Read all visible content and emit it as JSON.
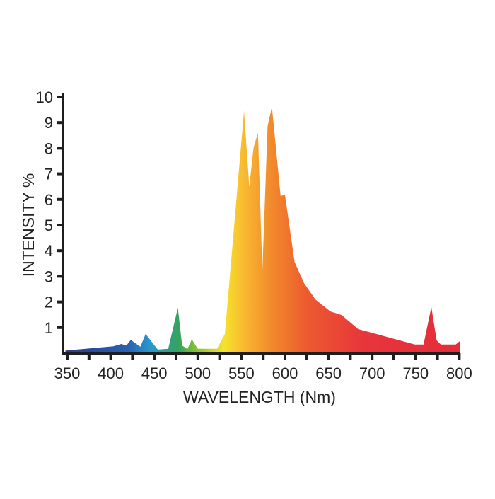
{
  "chart_data": {
    "type": "area",
    "title": "",
    "xlabel": "WAVELENGTH (Nm)",
    "ylabel": "INTENSITY %",
    "xlim": [
      345,
      800
    ],
    "ylim": [
      0,
      10
    ],
    "x_ticks": [
      350,
      375,
      400,
      425,
      450,
      475,
      500,
      525,
      550,
      575,
      600,
      625,
      650,
      675,
      700,
      725,
      750,
      775,
      800
    ],
    "x_tick_labels": [
      "350",
      "400",
      "450",
      "500",
      "550",
      "600",
      "650",
      "700",
      "750",
      "800"
    ],
    "x_tick_label_values": [
      350,
      400,
      450,
      500,
      550,
      600,
      650,
      700,
      750,
      800
    ],
    "y_ticks": [
      1,
      2,
      3,
      4,
      5,
      6,
      7,
      8,
      9,
      10
    ],
    "y_tick_labels": [
      "1",
      "2",
      "3",
      "4",
      "5",
      "6",
      "7",
      "8",
      "9",
      "10"
    ],
    "grid": false,
    "fill": "spectral gradient (blue → green → yellow → orange → red)",
    "gradient_stops": [
      {
        "wavelength": 350,
        "color": "#2e3a8c"
      },
      {
        "wavelength": 420,
        "color": "#2a62b0"
      },
      {
        "wavelength": 445,
        "color": "#2a96cc"
      },
      {
        "wavelength": 478,
        "color": "#35a35e"
      },
      {
        "wavelength": 495,
        "color": "#7cbc3a"
      },
      {
        "wavelength": 530,
        "color": "#f6e32a"
      },
      {
        "wavelength": 555,
        "color": "#f8b631"
      },
      {
        "wavelength": 585,
        "color": "#f2892b"
      },
      {
        "wavelength": 625,
        "color": "#ec5b30"
      },
      {
        "wavelength": 690,
        "color": "#e8353b"
      },
      {
        "wavelength": 800,
        "color": "#e42d3a"
      }
    ],
    "series": [
      {
        "x": [
          348,
          403,
          412,
          418,
          423,
          434,
          440,
          454,
          466,
          477,
          482,
          488,
          493,
          500,
          522,
          531,
          553,
          559,
          564,
          569,
          574,
          580,
          585,
          595,
          600,
          611,
          622,
          635,
          652,
          665,
          684,
          749,
          759,
          768,
          774,
          779,
          796,
          801
        ],
        "y": [
          0.1,
          0.27,
          0.36,
          0.3,
          0.52,
          0.25,
          0.75,
          0.14,
          0.17,
          1.77,
          0.3,
          0.16,
          0.54,
          0.17,
          0.17,
          0.75,
          9.46,
          6.5,
          8.03,
          8.6,
          3.2,
          8.86,
          9.62,
          6.14,
          6.17,
          3.56,
          2.73,
          2.09,
          1.63,
          1.49,
          0.94,
          0.34,
          0.34,
          1.8,
          0.5,
          0.34,
          0.34,
          0.48
        ]
      }
    ]
  }
}
